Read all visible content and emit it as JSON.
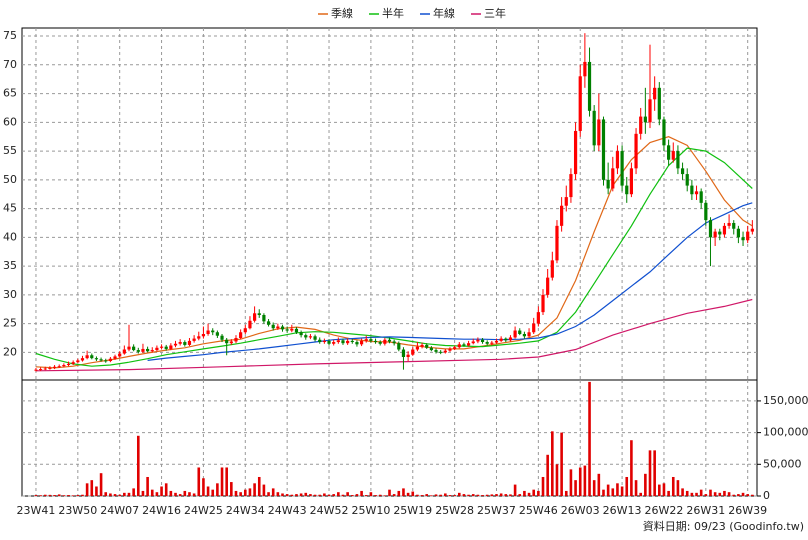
{
  "chart_data": {
    "type": "candlestick",
    "footer": "資料日期: 09/23 (Goodinfo.tw)",
    "x": [
      0,
      1,
      2,
      3,
      4,
      5,
      6,
      7,
      8,
      9,
      10,
      11,
      12,
      13,
      14,
      15,
      16,
      17,
      18,
      19,
      20,
      21,
      22,
      23,
      24,
      25,
      26,
      27,
      28,
      29,
      30,
      31,
      32,
      33,
      34,
      35,
      36,
      37,
      38,
      39,
      40,
      41,
      42,
      43,
      44,
      45,
      46,
      47,
      48,
      49,
      50,
      51,
      52,
      53,
      54,
      55,
      56,
      57,
      58,
      59,
      60,
      61,
      62,
      63,
      64,
      65,
      66,
      67,
      68,
      69,
      70,
      71,
      72,
      73,
      74,
      75,
      76,
      77,
      78,
      79,
      80,
      81,
      82,
      83,
      84,
      85,
      86,
      87,
      88,
      89,
      90,
      91,
      92,
      93,
      94,
      95,
      96,
      97,
      98,
      99,
      100,
      101,
      102,
      103,
      104,
      105,
      106,
      107,
      108,
      109,
      110,
      111,
      112,
      113,
      114,
      115,
      116,
      117,
      118,
      119,
      120,
      121,
      122,
      123,
      124,
      125,
      126,
      127,
      128,
      129,
      130,
      131,
      132,
      133,
      134,
      135,
      136,
      137,
      138,
      139,
      140,
      141,
      142,
      143,
      144,
      145,
      146,
      147,
      148,
      149,
      150,
      151,
      152,
      153,
      154
    ],
    "open": [
      16.9,
      17.0,
      17.1,
      17.2,
      17.3,
      17.5,
      17.6,
      17.8,
      18.0,
      18.3,
      18.6,
      19.0,
      19.5,
      19.0,
      18.8,
      18.6,
      18.5,
      18.9,
      19.3,
      19.8,
      20.5,
      21.0,
      20.4,
      20.1,
      20.6,
      20.2,
      20.4,
      20.8,
      21.0,
      20.6,
      21.2,
      21.5,
      21.8,
      21.3,
      22.0,
      22.4,
      22.8,
      23.2,
      23.8,
      23.5,
      22.9,
      22.2,
      21.6,
      21.9,
      22.5,
      23.5,
      24.2,
      25.5,
      26.8,
      26.5,
      25.4,
      24.8,
      24.2,
      24.5,
      24.0,
      23.8,
      24.1,
      23.5,
      23.0,
      22.6,
      22.8,
      22.2,
      21.8,
      22.0,
      21.5,
      21.8,
      22.1,
      21.6,
      22.0,
      21.8,
      21.4,
      22.0,
      22.3,
      22.0,
      21.8,
      21.5,
      22.2,
      21.9,
      21.6,
      20.5,
      19.2,
      19.6,
      20.5,
      21.0,
      21.3,
      20.8,
      20.4,
      20.1,
      20.0,
      20.3,
      20.6,
      20.9,
      21.4,
      21.2,
      21.6,
      21.9,
      22.2,
      21.8,
      21.5,
      21.7,
      22.0,
      22.4,
      22.1,
      22.6,
      23.8,
      23.2,
      22.8,
      23.5,
      25.0,
      27.0,
      30.0,
      33.0,
      36.0,
      42.0,
      45.5,
      47.0,
      51.0,
      58.5,
      68.0,
      70.5,
      62.0,
      56.0,
      60.5,
      50.0,
      48.5,
      52.0,
      55.0,
      49.0,
      47.5,
      52.0,
      58.0,
      61.0,
      60.0,
      64.0,
      66.0,
      60.5,
      56.0,
      53.5,
      55.0,
      52.0,
      51.0,
      49.0,
      47.5,
      48.0,
      46.0,
      43.0,
      40.0,
      41.0,
      40.5,
      42.0,
      42.5,
      41.5,
      40.0,
      39.5,
      41.0
    ],
    "high": [
      17.3,
      17.4,
      17.5,
      17.6,
      17.8,
      17.9,
      18.1,
      18.4,
      18.6,
      18.9,
      19.4,
      20.3,
      19.8,
      19.3,
      19.1,
      18.9,
      19.2,
      19.6,
      20.2,
      21.2,
      24.8,
      21.4,
      20.8,
      21.5,
      21.0,
      20.9,
      21.2,
      21.4,
      21.3,
      21.6,
      22.0,
      22.3,
      22.1,
      22.5,
      23.0,
      23.6,
      24.5,
      25.0,
      24.2,
      23.8,
      23.2,
      22.5,
      22.3,
      23.0,
      24.0,
      24.8,
      26.3,
      28.0,
      27.5,
      26.8,
      25.8,
      25.2,
      25.0,
      24.8,
      24.5,
      24.8,
      24.4,
      23.8,
      23.3,
      23.2,
      23.1,
      22.6,
      22.4,
      22.3,
      22.2,
      22.6,
      22.4,
      22.4,
      22.3,
      22.1,
      22.4,
      22.9,
      22.7,
      22.4,
      22.1,
      22.5,
      22.6,
      22.2,
      21.9,
      20.9,
      20.2,
      20.9,
      21.8,
      21.7,
      21.6,
      21.1,
      20.7,
      20.4,
      20.6,
      20.9,
      21.2,
      21.8,
      21.7,
      22.0,
      22.4,
      22.6,
      22.5,
      22.1,
      22.0,
      22.4,
      22.8,
      22.6,
      23.0,
      24.5,
      24.2,
      23.6,
      24.2,
      26.0,
      28.0,
      31.0,
      34.5,
      37.5,
      43.0,
      47.0,
      49.0,
      52.0,
      60.0,
      70.0,
      75.5,
      73.0,
      63.0,
      65.0,
      61.0,
      53.0,
      54.0,
      56.0,
      56.0,
      50.5,
      53.0,
      59.0,
      62.5,
      66.0,
      73.5,
      68.0,
      67.0,
      61.0,
      57.0,
      56.5,
      56.0,
      53.0,
      52.0,
      50.0,
      49.0,
      48.5,
      46.5,
      43.5,
      41.5,
      41.5,
      42.5,
      44.0,
      43.0,
      42.0,
      41.0,
      42.0,
      43.0
    ],
    "low": [
      16.7,
      16.8,
      16.9,
      17.0,
      17.1,
      17.3,
      17.4,
      17.6,
      17.8,
      18.1,
      18.4,
      18.8,
      18.8,
      18.5,
      18.4,
      18.2,
      18.3,
      18.7,
      19.1,
      19.6,
      20.2,
      20.2,
      19.8,
      19.9,
      20.0,
      20.0,
      20.2,
      20.5,
      20.3,
      20.4,
      20.9,
      21.2,
      21.0,
      21.1,
      21.7,
      22.1,
      22.4,
      22.9,
      23.0,
      22.5,
      21.8,
      19.5,
      21.3,
      21.6,
      22.3,
      23.2,
      24.0,
      25.2,
      26.0,
      25.0,
      24.5,
      23.8,
      23.9,
      23.6,
      23.4,
      23.5,
      23.2,
      22.6,
      22.2,
      22.3,
      21.9,
      21.5,
      21.5,
      21.2,
      21.2,
      21.5,
      21.3,
      21.3,
      21.5,
      21.0,
      21.1,
      21.7,
      21.7,
      21.5,
      21.2,
      21.2,
      21.6,
      21.2,
      20.2,
      17.0,
      18.5,
      19.4,
      20.2,
      20.7,
      20.6,
      20.2,
      19.8,
      19.7,
      19.8,
      20.1,
      20.4,
      20.7,
      21.0,
      21.0,
      21.4,
      21.6,
      21.5,
      21.2,
      21.2,
      21.5,
      21.8,
      21.8,
      21.9,
      22.4,
      23.0,
      22.4,
      22.6,
      23.2,
      24.5,
      26.5,
      29.5,
      32.5,
      35.5,
      41.0,
      44.5,
      46.0,
      50.0,
      57.5,
      66.0,
      61.0,
      55.0,
      55.0,
      49.0,
      47.5,
      48.0,
      51.0,
      48.0,
      46.0,
      47.0,
      51.0,
      57.0,
      58.0,
      59.0,
      62.0,
      59.5,
      55.0,
      52.5,
      53.0,
      51.0,
      50.0,
      48.0,
      46.5,
      46.5,
      45.0,
      42.0,
      35.0,
      38.5,
      39.5,
      40.0,
      41.5,
      40.5,
      39.0,
      38.5,
      39.0,
      40.5
    ],
    "close": [
      17.0,
      17.1,
      17.2,
      17.3,
      17.5,
      17.6,
      17.8,
      18.0,
      18.3,
      18.6,
      19.0,
      19.5,
      19.0,
      18.8,
      18.6,
      18.5,
      18.9,
      19.3,
      19.8,
      20.5,
      21.0,
      20.4,
      20.1,
      20.6,
      20.2,
      20.4,
      20.8,
      21.0,
      20.6,
      21.2,
      21.5,
      21.8,
      21.3,
      22.0,
      22.4,
      22.8,
      23.2,
      23.8,
      23.5,
      22.9,
      22.2,
      21.6,
      21.9,
      22.5,
      23.5,
      24.2,
      25.5,
      26.8,
      26.5,
      25.4,
      24.8,
      24.2,
      24.5,
      24.0,
      23.8,
      24.1,
      23.5,
      23.0,
      22.6,
      22.8,
      22.2,
      21.8,
      22.0,
      21.5,
      21.8,
      22.1,
      21.6,
      22.0,
      21.8,
      21.4,
      22.0,
      22.3,
      22.0,
      21.8,
      21.5,
      22.2,
      21.9,
      21.6,
      20.5,
      19.2,
      19.6,
      20.5,
      21.0,
      21.3,
      20.8,
      20.4,
      20.1,
      20.0,
      20.3,
      20.6,
      20.9,
      21.4,
      21.2,
      21.6,
      21.9,
      22.2,
      21.8,
      21.5,
      21.7,
      22.0,
      22.4,
      22.1,
      22.6,
      23.8,
      23.2,
      22.8,
      23.5,
      25.0,
      27.0,
      30.0,
      33.0,
      36.0,
      42.0,
      45.5,
      47.0,
      51.0,
      58.5,
      68.0,
      70.5,
      62.0,
      56.0,
      60.5,
      50.0,
      48.5,
      52.0,
      55.0,
      49.0,
      47.5,
      52.0,
      58.0,
      61.0,
      60.0,
      64.0,
      66.0,
      60.5,
      56.0,
      53.5,
      55.0,
      52.0,
      51.0,
      49.0,
      47.5,
      48.0,
      46.0,
      43.0,
      40.0,
      41.0,
      40.5,
      42.0,
      42.5,
      41.5,
      40.0,
      39.5,
      41.0,
      41.5
    ],
    "volume": [
      1500,
      1200,
      2000,
      1800,
      1500,
      2500,
      1200,
      1500,
      1000,
      1500,
      2000,
      20000,
      25000,
      15000,
      36000,
      6000,
      4000,
      3000,
      2000,
      5000,
      5000,
      12000,
      95000,
      8000,
      30000,
      10000,
      6000,
      15000,
      20000,
      8000,
      5000,
      3000,
      8000,
      6000,
      4000,
      45000,
      28000,
      15000,
      10000,
      20000,
      45000,
      45000,
      22000,
      8000,
      6000,
      10000,
      12000,
      20000,
      30000,
      18000,
      6000,
      12000,
      6000,
      4000,
      3000,
      2000,
      3000,
      4000,
      5000,
      3000,
      2000,
      2000,
      4000,
      2000,
      3000,
      6000,
      2000,
      6000,
      1500,
      3000,
      8000,
      1500,
      6000,
      1500,
      2000,
      1000,
      10000,
      3000,
      8000,
      12000,
      5000,
      7000,
      2000,
      1500,
      3000,
      1000,
      2500,
      2000,
      4000,
      1500,
      1500,
      5000,
      3000,
      2000,
      3000,
      2000,
      1500,
      2000,
      2500,
      3000,
      4000,
      3000,
      2500,
      18000,
      3000,
      8000,
      5000,
      10000,
      8000,
      30000,
      65000,
      102000,
      50000,
      100000,
      8000,
      42000,
      25000,
      45000,
      48000,
      180000,
      25000,
      35000,
      10000,
      18000,
      12000,
      20000,
      15000,
      30000,
      88000,
      25000,
      5000,
      35000,
      72000,
      72000,
      18000,
      20000,
      8000,
      30000,
      25000,
      12000,
      8000,
      5000,
      5000,
      10000,
      3000,
      10000,
      6000,
      5000,
      8000,
      6000,
      2000,
      3000,
      5000,
      3000,
      2000
    ],
    "up_color": "#ff0000",
    "down_color": "#008000",
    "volume_color": "#e00000",
    "series": [
      {
        "name": "季線",
        "color": "#e06818",
        "x": [
          0,
          4,
          8,
          12,
          16,
          20,
          24,
          28,
          32,
          36,
          40,
          44,
          48,
          52,
          56,
          60,
          64,
          68,
          72,
          76,
          80,
          84,
          88,
          92,
          96,
          100,
          104,
          108,
          112,
          116,
          120,
          124,
          128,
          132,
          136,
          140,
          144,
          148,
          152,
          154
        ],
        "values": [
          17.5,
          17.3,
          17.6,
          18.2,
          18.7,
          19.3,
          19.9,
          20.4,
          20.8,
          21.5,
          22.0,
          22.3,
          23.3,
          24.1,
          24.4,
          24.0,
          23.0,
          22.3,
          21.9,
          21.8,
          21.3,
          20.9,
          20.6,
          20.6,
          21.1,
          21.6,
          22.1,
          23.0,
          26.0,
          32.5,
          41.0,
          49.0,
          53.5,
          56.5,
          57.5,
          56.0,
          51.5,
          46.5,
          43.0,
          42.0
        ]
      },
      {
        "name": "半年",
        "color": "#10c010",
        "x": [
          0,
          4,
          8,
          12,
          16,
          20,
          24,
          28,
          32,
          36,
          40,
          44,
          48,
          52,
          56,
          60,
          64,
          68,
          72,
          76,
          80,
          84,
          88,
          92,
          96,
          100,
          104,
          108,
          112,
          116,
          120,
          124,
          128,
          132,
          136,
          140,
          144,
          148,
          152,
          154
        ],
        "values": [
          19.8,
          18.8,
          18.0,
          17.6,
          17.8,
          18.3,
          18.9,
          19.6,
          20.1,
          20.6,
          21.1,
          21.6,
          22.2,
          22.8,
          23.4,
          23.6,
          23.5,
          23.2,
          22.9,
          22.5,
          22.0,
          21.5,
          21.2,
          21.1,
          21.0,
          21.3,
          21.6,
          22.0,
          23.5,
          27.0,
          32.0,
          37.0,
          42.0,
          47.5,
          52.5,
          55.5,
          55.0,
          53.0,
          50.0,
          48.5
        ]
      },
      {
        "name": "年線",
        "color": "#1050d0",
        "x": [
          24,
          28,
          32,
          36,
          40,
          44,
          48,
          52,
          56,
          60,
          64,
          68,
          72,
          76,
          80,
          84,
          88,
          92,
          96,
          100,
          104,
          108,
          112,
          116,
          120,
          124,
          128,
          132,
          136,
          140,
          144,
          148,
          152,
          154
        ],
        "values": [
          18.6,
          19.0,
          19.3,
          19.6,
          20.0,
          20.3,
          20.6,
          21.0,
          21.4,
          21.8,
          22.2,
          22.4,
          22.6,
          22.7,
          22.6,
          22.5,
          22.4,
          22.3,
          22.3,
          22.2,
          22.3,
          22.5,
          23.2,
          24.5,
          26.5,
          29.0,
          31.5,
          34.0,
          37.0,
          40.0,
          42.5,
          44.0,
          45.5,
          46.0
        ]
      },
      {
        "name": "三年",
        "color": "#d01868",
        "x": [
          0,
          20,
          40,
          60,
          80,
          100,
          108,
          116,
          124,
          132,
          140,
          148,
          154
        ],
        "values": [
          16.8,
          17.0,
          17.5,
          18.0,
          18.4,
          18.8,
          19.2,
          20.5,
          23.0,
          25.0,
          26.8,
          28.0,
          29.2
        ]
      }
    ],
    "xlim": [
      -3,
      155
    ],
    "xticks": [
      {
        "value": 0,
        "label": "23W41"
      },
      {
        "value": 9,
        "label": "23W50"
      },
      {
        "value": 18,
        "label": "24W07"
      },
      {
        "value": 27,
        "label": "24W16"
      },
      {
        "value": 36,
        "label": "24W25"
      },
      {
        "value": 45,
        "label": "24W34"
      },
      {
        "value": 54,
        "label": "24W43"
      },
      {
        "value": 63,
        "label": "24W52"
      },
      {
        "value": 72,
        "label": "25W10"
      },
      {
        "value": 81,
        "label": "25W19"
      },
      {
        "value": 90,
        "label": "25W28"
      },
      {
        "value": 99,
        "label": "25W37"
      },
      {
        "value": 108,
        "label": "25W46"
      },
      {
        "value": 117,
        "label": "26W03"
      },
      {
        "value": 126,
        "label": "26W13"
      },
      {
        "value": 135,
        "label": "26W22"
      },
      {
        "value": 144,
        "label": "26W31"
      },
      {
        "value": 153,
        "label": "26W39"
      }
    ],
    "ylim": [
      15.2,
      76.4
    ],
    "yticks": [
      20,
      25,
      30,
      35,
      40,
      45,
      50,
      55,
      60,
      65,
      70,
      75
    ],
    "volume_ylim": [
      0,
      183000
    ],
    "volume_yticks": [
      0,
      {
        "value": 50000,
        "label": "50,000"
      },
      {
        "value": 100000,
        "label": "100,000"
      },
      {
        "value": 150000,
        "label": "150,000"
      }
    ],
    "grid": true
  }
}
